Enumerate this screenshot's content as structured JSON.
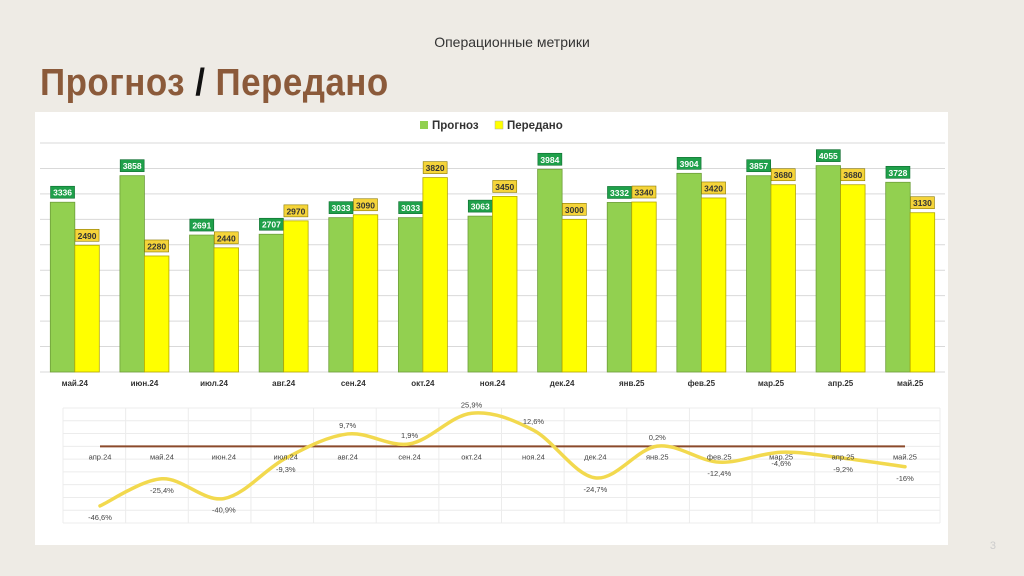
{
  "header": {
    "subtitle": "Операционные метрики",
    "title_part1": "Прогноз",
    "title_sep": "/",
    "title_part2": "Передано"
  },
  "page_number": "3",
  "colors": {
    "forecast": "#92d050",
    "delivered": "#ffff00",
    "forecast_label": "#1fa04a",
    "line": "#f2d94e",
    "zero_line": "#8b4a2b",
    "title": "#8b5a3a"
  },
  "chart_data": [
    {
      "type": "bar",
      "legend_position": "top",
      "grid": true,
      "ylim": [
        0,
        4500
      ],
      "categories": [
        "май.24",
        "июн.24",
        "июл.24",
        "авг.24",
        "сен.24",
        "окт.24",
        "ноя.24",
        "дек.24",
        "янв.25",
        "фев.25",
        "мар.25",
        "апр.25",
        "май.25"
      ],
      "series": [
        {
          "name": "Прогноз",
          "values": [
            3336,
            3858,
            2691,
            2707,
            3033,
            3033,
            3063,
            3984,
            3332,
            3904,
            3857,
            4055,
            3728
          ]
        },
        {
          "name": "Передано",
          "values": [
            2490,
            2280,
            2440,
            2970,
            3090,
            3820,
            3450,
            3000,
            3340,
            3420,
            3680,
            3680,
            3130
          ]
        }
      ]
    },
    {
      "type": "line",
      "grid": true,
      "ylim": [
        -60,
        30
      ],
      "categories": [
        "апр.24",
        "май.24",
        "июн.24",
        "июл.24",
        "авг.24",
        "сен.24",
        "окт.24",
        "ноя.24",
        "дек.24",
        "янв.25",
        "фев.25",
        "мар.25",
        "апр.25",
        "май.25"
      ],
      "values": [
        -46.6,
        -25.4,
        -40.9,
        -9.3,
        9.7,
        1.9,
        25.9,
        12.6,
        -24.7,
        0.2,
        -12.4,
        -4.6,
        -9.2,
        -16
      ],
      "labels": [
        "-46,6%",
        "-25,4%",
        "-40,9%",
        "-9,3%",
        "9,7%",
        "1,9%",
        "25,9%",
        "12,6%",
        "-24,7%",
        "0,2%",
        "-12,4%",
        "-4,6%",
        "-9,2%",
        "-16%"
      ]
    }
  ]
}
